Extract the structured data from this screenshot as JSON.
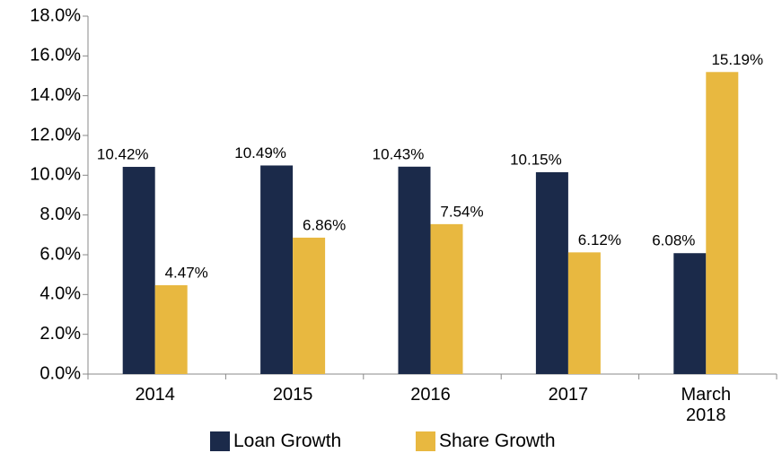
{
  "chart_data": {
    "type": "bar",
    "categories": [
      "2014",
      "2015",
      "2016",
      "2017",
      "March 2018"
    ],
    "series": [
      {
        "name": "Loan Growth",
        "color": "#1b2a4a",
        "values": [
          10.42,
          10.49,
          10.43,
          10.15,
          6.08
        ],
        "value_labels": [
          "10.42%",
          "10.49%",
          "10.43%",
          "10.15%",
          "6.08%"
        ]
      },
      {
        "name": "Share Growth",
        "color": "#e8b840",
        "values": [
          4.47,
          6.86,
          7.54,
          6.12,
          15.19
        ],
        "value_labels": [
          "4.47%",
          "6.86%",
          "7.54%",
          "6.12%",
          "15.19%"
        ]
      }
    ],
    "ylim": [
      0,
      18
    ],
    "yticks": [
      {
        "value": 0,
        "label": "0.0%"
      },
      {
        "value": 2,
        "label": "2.0%"
      },
      {
        "value": 4,
        "label": "4.0%"
      },
      {
        "value": 6,
        "label": "6.0%"
      },
      {
        "value": 8,
        "label": "8.0%"
      },
      {
        "value": 10,
        "label": "10.0%"
      },
      {
        "value": 12,
        "label": "12.0%"
      },
      {
        "value": 14,
        "label": "14.0%"
      },
      {
        "value": 16,
        "label": "16.0%"
      },
      {
        "value": 18,
        "label": "18.0%"
      }
    ],
    "grid": false,
    "legend": "bottom"
  }
}
